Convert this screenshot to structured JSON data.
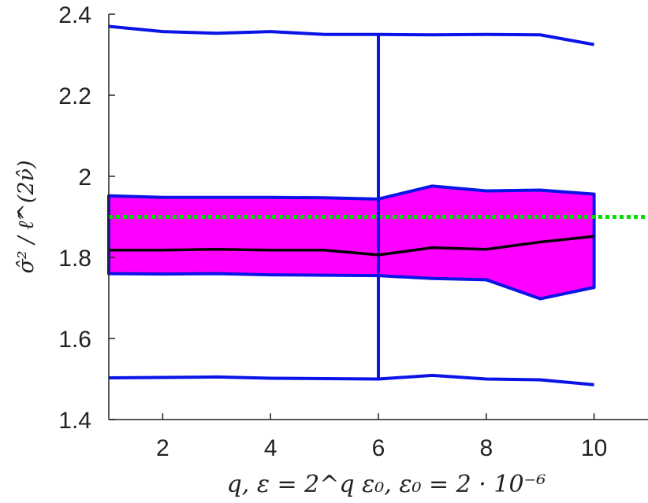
{
  "chart_data": {
    "type": "area",
    "x": [
      1,
      2,
      3,
      4,
      5,
      6,
      7,
      8,
      9,
      10
    ],
    "xlim": [
      1,
      11
    ],
    "ylim": [
      1.4,
      2.4
    ],
    "xticks": [
      2,
      4,
      6,
      8,
      10
    ],
    "yticks": [
      1.4,
      1.6,
      1.8,
      2.0,
      2.2,
      2.4
    ],
    "xtick_labels": [
      "2",
      "4",
      "6",
      "8",
      "10"
    ],
    "ytick_labels": [
      "1.4",
      "1.6",
      "1.8",
      "2",
      "2.2",
      "2.4"
    ],
    "xlabel": "q, ε = 2^q ε₀, ε₀ = 2 · 10⁻⁶",
    "ylabel": "σ̂² / ℓ̂^(2ν̂)",
    "grid": false,
    "series": [
      {
        "role": "whisker-upper",
        "color": "#0a14e6",
        "values": [
          2.37,
          2.357,
          2.353,
          2.357,
          2.35,
          2.35,
          2.349,
          2.35,
          2.349,
          2.325
        ]
      },
      {
        "role": "whisker-lower",
        "color": "#0a14e6",
        "values": [
          1.503,
          1.504,
          1.505,
          1.502,
          1.501,
          1.5,
          1.509,
          1.5,
          1.498,
          1.486
        ]
      },
      {
        "role": "box-upper",
        "color": "#0a14e6",
        "values": [
          1.952,
          1.948,
          1.948,
          1.948,
          1.947,
          1.944,
          1.976,
          1.964,
          1.966,
          1.956
        ]
      },
      {
        "role": "box-lower",
        "color": "#0a14e6",
        "values": [
          1.76,
          1.759,
          1.76,
          1.757,
          1.756,
          1.755,
          1.748,
          1.745,
          1.698,
          1.726
        ]
      },
      {
        "role": "median",
        "color": "#000000",
        "values": [
          1.818,
          1.818,
          1.82,
          1.818,
          1.818,
          1.806,
          1.824,
          1.82,
          1.838,
          1.852
        ]
      }
    ],
    "box_fill": "#ff00ff",
    "reference_line": {
      "y": 1.9,
      "color": "#00dd00",
      "style": "dotted"
    },
    "vertical_marker": {
      "x": 6,
      "color": "#0a14e6"
    }
  }
}
